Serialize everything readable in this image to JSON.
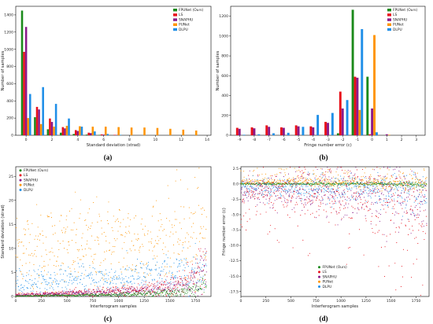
{
  "colors": {
    "FPUNet (Ours)": "#1a8a1a",
    "LS": "#e8101a",
    "SNAPHU": "#8a1a8a",
    "PUNet": "#ff9500",
    "DLPU": "#1f8fe8"
  },
  "legend_entries": [
    "FPUNet (Ours)",
    "LS",
    "SNAPHU",
    "PUNet",
    "DLPU"
  ],
  "panel_labels": {
    "a": "(a)",
    "b": "(b)",
    "c": "(c)",
    "d": "(d)"
  },
  "chart_data": [
    {
      "id": "a",
      "type": "bar",
      "xlabel": "Standard deviation (strad)",
      "ylabel": "Number of samples",
      "xlim": [
        -0.8,
        14.3
      ],
      "ylim": [
        0,
        1500
      ],
      "xticks": [
        0,
        2,
        4,
        6,
        8,
        10,
        12,
        14
      ],
      "yticks": [
        0,
        200,
        400,
        600,
        800,
        1000,
        1200,
        1400
      ],
      "legend_position": "top-right",
      "bin_centers": [
        0,
        1,
        2,
        3,
        4,
        5,
        6,
        7,
        8,
        9,
        10,
        11,
        12,
        13
      ],
      "series": [
        {
          "name": "FPUNet (Ours)",
          "values": [
            1450,
            210,
            70,
            30,
            15,
            8,
            5,
            0,
            0,
            0,
            0,
            0,
            0,
            0
          ]
        },
        {
          "name": "LS",
          "values": [
            970,
            330,
            195,
            95,
            60,
            30,
            10,
            5,
            0,
            0,
            0,
            0,
            0,
            0
          ]
        },
        {
          "name": "SNAPHU",
          "values": [
            1260,
            300,
            155,
            80,
            50,
            25,
            8,
            3,
            0,
            0,
            0,
            0,
            0,
            0
          ]
        },
        {
          "name": "PUNet",
          "values": [
            200,
            130,
            100,
            110,
            105,
            100,
            100,
            95,
            90,
            90,
            85,
            75,
            65,
            55
          ]
        },
        {
          "name": "DLPU",
          "values": [
            480,
            560,
            365,
            195,
            100,
            45,
            15,
            5,
            0,
            0,
            0,
            0,
            0,
            0
          ]
        }
      ]
    },
    {
      "id": "b",
      "type": "bar",
      "xlabel": "Fringe number error (c)",
      "ylabel": "Number of samples",
      "xlim": [
        -9.6,
        3.6
      ],
      "ylim": [
        0,
        1300
      ],
      "xticks": [
        -9,
        -8,
        -7,
        -6,
        -5,
        -4,
        -3,
        -2,
        -1,
        0,
        1,
        2,
        3
      ],
      "yticks": [
        0,
        200,
        400,
        600,
        800,
        1000,
        1200
      ],
      "legend_position": "top-right",
      "bin_centers": [
        -9,
        -8,
        -7,
        -6,
        -5,
        -4,
        -3,
        -2,
        -1,
        0,
        1,
        2,
        3
      ],
      "series": [
        {
          "name": "FPUNet (Ours)",
          "values": [
            0,
            0,
            0,
            0,
            0,
            0,
            0,
            20,
            1265,
            590,
            0,
            0,
            0
          ]
        },
        {
          "name": "LS",
          "values": [
            75,
            80,
            100,
            80,
            100,
            90,
            135,
            440,
            590,
            10,
            0,
            0,
            0
          ]
        },
        {
          "name": "SNAPHU",
          "values": [
            65,
            70,
            85,
            75,
            90,
            80,
            125,
            270,
            580,
            270,
            10,
            0,
            0
          ]
        },
        {
          "name": "PUNet",
          "values": [
            0,
            0,
            0,
            0,
            0,
            0,
            0,
            0,
            255,
            1010,
            5,
            0,
            0
          ]
        },
        {
          "name": "DLPU",
          "values": [
            5,
            10,
            20,
            25,
            85,
            205,
            225,
            355,
            1070,
            30,
            0,
            0,
            0
          ]
        }
      ]
    },
    {
      "id": "c",
      "type": "scatter",
      "xlabel": "Interferogram samples",
      "ylabel": "Standard deviation (strad)",
      "xlim": [
        0,
        1900
      ],
      "ylim": [
        0,
        27
      ],
      "xticks": [
        0,
        250,
        500,
        750,
        1000,
        1250,
        1500,
        1750
      ],
      "yticks": [
        0,
        5,
        10,
        15,
        20,
        25
      ],
      "legend_position": "top-left",
      "n_samples": 1860,
      "series": [
        {
          "name": "PUNet",
          "trend_x": [
            0,
            400,
            800,
            1200,
            1500,
            1700,
            1860
          ],
          "trend_y": [
            10.0,
            10.0,
            10.5,
            11.0,
            11.5,
            12.5,
            13.5
          ]
        },
        {
          "name": "DLPU",
          "trend_x": [
            0,
            400,
            800,
            1200,
            1500,
            1700,
            1860
          ],
          "trend_y": [
            3.0,
            3.2,
            3.5,
            4.0,
            4.5,
            5.0,
            6.0
          ]
        },
        {
          "name": "LS",
          "trend_x": [
            0,
            400,
            800,
            1200,
            1500,
            1700,
            1860
          ],
          "trend_y": [
            0.3,
            0.5,
            0.8,
            1.3,
            2.2,
            3.5,
            6.0
          ]
        },
        {
          "name": "SNAPHU",
          "trend_x": [
            0,
            400,
            800,
            1200,
            1500,
            1700,
            1860
          ],
          "trend_y": [
            0.3,
            0.5,
            0.7,
            1.1,
            1.8,
            2.8,
            5.0
          ]
        },
        {
          "name": "FPUNet (Ours)",
          "trend_x": [
            0,
            400,
            800,
            1200,
            1500,
            1700,
            1860
          ],
          "trend_y": [
            0.1,
            0.2,
            0.3,
            0.5,
            0.8,
            1.3,
            2.5
          ]
        }
      ]
    },
    {
      "id": "d",
      "type": "scatter",
      "xlabel": "Interferogram samples",
      "ylabel": "Fringe number error (c)",
      "xlim": [
        0,
        1880
      ],
      "ylim": [
        -18.3,
        2.8
      ],
      "xticks": [
        0,
        250,
        500,
        750,
        1000,
        1250,
        1500,
        1750
      ],
      "yticks": [
        2.5,
        0.0,
        -2.5,
        -5.0,
        -7.5,
        -10.0,
        -12.5,
        -15.0,
        -17.5
      ],
      "ytick_labels": [
        "2.5",
        "0.0",
        "-2.5",
        "-5.0",
        "-7.5",
        "-10.0",
        "-12.5",
        "-15.0",
        "-17.5"
      ],
      "legend_position": "bottom-center",
      "n_samples": 1860,
      "series": [
        {
          "name": "FPUNet (Ours)",
          "trend_x": [
            0,
            900,
            1500,
            1860
          ],
          "trend_y": [
            0.0,
            0.0,
            0.0,
            -0.2
          ]
        },
        {
          "name": "PUNet",
          "trend_x": [
            0,
            900,
            1500,
            1860
          ],
          "trend_y": [
            0.3,
            0.2,
            0.1,
            0.0
          ]
        },
        {
          "name": "DLPU",
          "trend_x": [
            0,
            900,
            1500,
            1860
          ],
          "trend_y": [
            -0.5,
            -0.8,
            -1.0,
            -1.5
          ]
        },
        {
          "name": "SNAPHU",
          "trend_x": [
            0,
            900,
            1500,
            1860
          ],
          "trend_y": [
            -1.0,
            -1.5,
            -2.0,
            -3.0
          ]
        },
        {
          "name": "LS",
          "trend_x": [
            0,
            900,
            1500,
            1860
          ],
          "trend_y": [
            -1.0,
            -2.0,
            -3.0,
            -5.0
          ]
        }
      ]
    }
  ]
}
